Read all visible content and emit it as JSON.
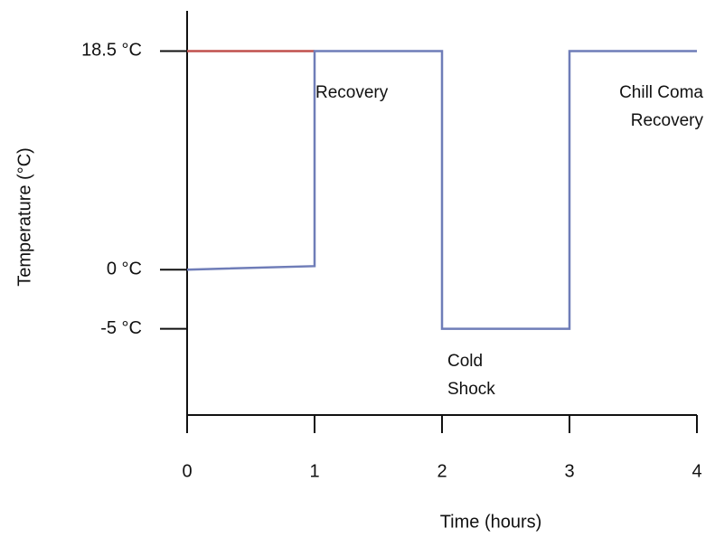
{
  "chart_data": {
    "type": "line",
    "xlabel": "Time (hours)",
    "ylabel": "Temperature (°C)",
    "xlim": [
      0,
      4
    ],
    "xticks": [
      0,
      1,
      2,
      3,
      4
    ],
    "ylim": [
      -12.3,
      21.9
    ],
    "yticks": [
      {
        "value": 18.5,
        "label": "18.5 °C"
      },
      {
        "value": 0,
        "label": "0 °C"
      },
      {
        "value": -5,
        "label": "-5 °C"
      }
    ],
    "series": [
      {
        "color": "#c0504d",
        "x": [
          0,
          1
        ],
        "values": [
          18.5,
          18.5
        ]
      },
      {
        "color": "#6f7db8",
        "x": [
          0,
          1,
          1,
          2,
          2,
          3,
          3,
          4
        ],
        "values": [
          0,
          0.3,
          18.5,
          18.5,
          -5,
          -5,
          18.5,
          18.5
        ]
      }
    ],
    "annotations": [
      "Recovery",
      "Chill Coma",
      "Recovery",
      "Cold",
      "Shock"
    ]
  }
}
